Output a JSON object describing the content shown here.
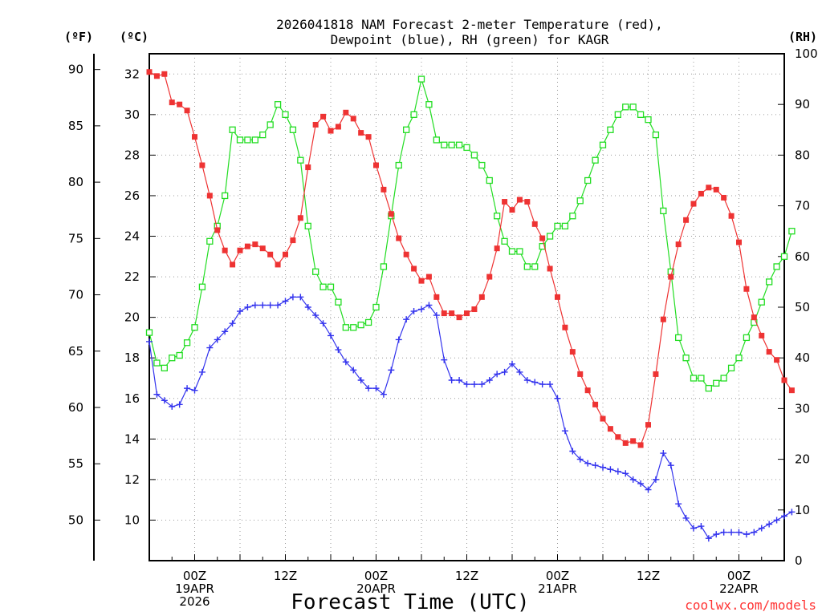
{
  "chart_data": {
    "type": "line",
    "title_line1": "2026041818 NAM Forecast 2-meter Temperature (red),",
    "title_line2": "Dewpoint (blue), RH (green) for KAGR",
    "xlabel": "Forecast Time (UTC)",
    "credit": "coolwx.com/models",
    "left_unit_f": "(ºF)",
    "left_unit_c": "(ºC)",
    "right_unit": "(RH)",
    "x_step_hours": 1,
    "x_range_hours": [
      0,
      84
    ],
    "c_range": [
      8,
      33
    ],
    "rh_range": [
      0,
      100
    ],
    "f_ticks": [
      "90",
      "85",
      "80",
      "75",
      "70",
      "65",
      "60",
      "55",
      "50"
    ],
    "c_ticks": [
      "32",
      "30",
      "28",
      "26",
      "24",
      "22",
      "20",
      "18",
      "16",
      "14",
      "12",
      "10"
    ],
    "rh_ticks": [
      "100",
      "90",
      "80",
      "70",
      "60",
      "50",
      "40",
      "30",
      "20",
      "10",
      "0"
    ],
    "x_ticks": [
      {
        "hour": 6,
        "lines": [
          "00Z",
          "19APR",
          "2026"
        ]
      },
      {
        "hour": 18,
        "lines": [
          "12Z"
        ]
      },
      {
        "hour": 30,
        "lines": [
          "00Z",
          "20APR"
        ]
      },
      {
        "hour": 42,
        "lines": [
          "12Z"
        ]
      },
      {
        "hour": 54,
        "lines": [
          "00Z",
          "21APR"
        ]
      },
      {
        "hour": 66,
        "lines": [
          "12Z"
        ]
      },
      {
        "hour": 78,
        "lines": [
          "00Z",
          "22APR"
        ]
      }
    ],
    "series": [
      {
        "name": "Temperature",
        "unit": "C",
        "color": "#ee3333",
        "values": [
          32.1,
          31.9,
          32.0,
          30.6,
          30.5,
          30.2,
          28.9,
          27.5,
          26.0,
          24.3,
          23.3,
          22.6,
          23.3,
          23.5,
          23.6,
          23.4,
          23.1,
          22.6,
          23.1,
          23.8,
          24.9,
          27.4,
          29.5,
          29.9,
          29.2,
          29.4,
          30.1,
          29.8,
          29.1,
          28.9,
          27.5,
          26.3,
          25.1,
          23.9,
          23.1,
          22.4,
          21.8,
          22.0,
          21.0,
          20.2,
          20.2,
          20.0,
          20.2,
          20.4,
          21.0,
          22.0,
          23.4,
          25.7,
          25.3,
          25.8,
          25.7,
          24.6,
          23.9,
          22.4,
          21.0,
          19.5,
          18.3,
          17.2,
          16.4,
          15.7,
          15.0,
          14.5,
          14.1,
          13.8,
          13.9,
          13.7,
          14.7,
          17.2,
          19.9,
          22.0,
          23.6,
          24.8,
          25.6,
          26.1,
          26.4,
          26.3,
          25.9,
          25.0,
          23.7,
          21.4,
          20.0,
          19.1,
          18.3,
          17.9,
          16.9,
          16.4
        ]
      },
      {
        "name": "Dewpoint",
        "unit": "C",
        "color": "#3333ee",
        "values": [
          18.8,
          16.2,
          15.9,
          15.6,
          15.7,
          16.5,
          16.4,
          17.3,
          18.5,
          18.9,
          19.3,
          19.7,
          20.3,
          20.5,
          20.6,
          20.6,
          20.6,
          20.6,
          20.8,
          21.0,
          21.0,
          20.5,
          20.1,
          19.7,
          19.1,
          18.4,
          17.8,
          17.4,
          16.9,
          16.5,
          16.5,
          16.2,
          17.4,
          18.9,
          19.9,
          20.3,
          20.4,
          20.6,
          20.1,
          17.9,
          16.9,
          16.9,
          16.7,
          16.7,
          16.7,
          16.9,
          17.2,
          17.3,
          17.7,
          17.3,
          16.9,
          16.8,
          16.7,
          16.7,
          16.0,
          14.4,
          13.4,
          13.0,
          12.8,
          12.7,
          12.6,
          12.5,
          12.4,
          12.3,
          12.0,
          11.8,
          11.5,
          12.0,
          13.3,
          12.7,
          10.8,
          10.1,
          9.6,
          9.7,
          9.1,
          9.3,
          9.4,
          9.4,
          9.4,
          9.3,
          9.4,
          9.6,
          9.8,
          10.0,
          10.2,
          10.4
        ]
      },
      {
        "name": "RH",
        "unit": "%",
        "color": "#22dd22",
        "values": [
          45,
          39,
          38,
          40,
          40.5,
          43,
          46,
          54,
          63,
          66,
          72,
          85,
          83,
          83,
          83,
          84,
          86,
          90,
          88,
          85,
          79,
          66,
          57,
          54,
          54,
          51,
          46,
          46,
          46.5,
          47,
          50,
          58,
          68,
          78,
          85,
          88,
          95,
          90,
          83,
          82,
          82,
          82,
          81.5,
          80,
          78,
          75,
          68,
          63,
          61,
          61,
          58,
          58,
          62,
          64,
          66,
          66,
          68,
          71,
          75,
          79,
          82,
          85,
          88,
          89.5,
          89.5,
          88,
          87,
          84,
          69,
          57,
          44,
          40,
          36,
          36,
          34,
          35,
          36,
          38,
          40,
          44,
          47,
          51,
          55,
          58,
          60,
          65
        ]
      }
    ]
  }
}
